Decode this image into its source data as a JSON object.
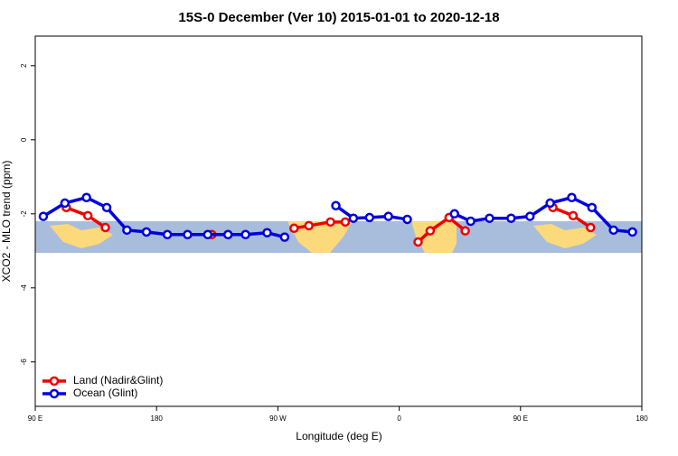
{
  "chart_data": {
    "type": "line",
    "title": "15S-0 December (Ver 10)   2015-01-01 to 2020-12-18",
    "x_label": "Longitude (deg E)",
    "y_label": "XCO2 - MLO trend (ppm)",
    "xlim": [
      90,
      540
    ],
    "ylim": [
      -7.2,
      2.8
    ],
    "xticks": [
      {
        "value": 90,
        "label": "90 E"
      },
      180,
      {
        "value": 270,
        "label": "90 W"
      },
      {
        "value": 360,
        "label": "0"
      },
      {
        "value": 450,
        "label": "90 E"
      },
      {
        "value": 540,
        "label": "180"
      }
    ],
    "yticks": [
      -6,
      -4,
      -2,
      0,
      2
    ],
    "legend": "bottom-left",
    "series": [
      {
        "name": "Land (Nadir&Glint)",
        "color": "#ee0000",
        "x": [
          113,
          129,
          142,
          null,
          221,
          null,
          282,
          293,
          309,
          320,
          null,
          374,
          383,
          397,
          409,
          null,
          474,
          489,
          502
        ],
        "values": [
          -1.83,
          -2.05,
          -2.37,
          null,
          -2.56,
          null,
          -2.39,
          -2.32,
          -2.22,
          -2.22,
          null,
          -2.76,
          -2.46,
          -2.1,
          -2.46,
          null,
          -1.83,
          -2.05,
          -2.37
        ]
      },
      {
        "name": "Ocean (Glint)",
        "color": "#0000dd",
        "x": [
          96,
          112,
          128,
          143,
          158,
          172.5,
          188,
          203,
          218,
          233,
          246,
          262,
          275,
          null,
          313,
          326,
          338,
          352,
          366,
          null,
          401,
          413,
          427,
          443,
          457,
          472,
          488,
          503,
          519,
          533
        ],
        "values": [
          -2.07,
          -1.71,
          -1.56,
          -1.83,
          -2.44,
          -2.49,
          -2.56,
          -2.56,
          -2.56,
          -2.56,
          -2.56,
          -2.51,
          -2.63,
          null,
          -1.78,
          -2.12,
          -2.1,
          -2.07,
          -2.15,
          null,
          -2.0,
          -2.2,
          -2.12,
          -2.12,
          -2.07,
          -1.71,
          -1.56,
          -1.83,
          -2.44,
          -2.49
        ]
      }
    ]
  }
}
